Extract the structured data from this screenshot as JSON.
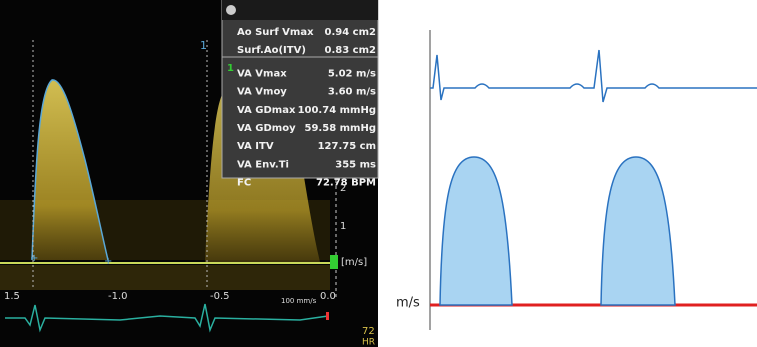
{
  "doppler": {
    "measurements": [
      {
        "label": "Ao Surf Vmax",
        "value": "0.94 cm2"
      },
      {
        "label": "Surf.Ao(ITV)",
        "value": "0.83 cm2"
      },
      {
        "label": "VA Vmax",
        "value": "5.02 m/s"
      },
      {
        "label": "VA Vmoy",
        "value": "3.60 m/s"
      },
      {
        "label": "VA GDmax",
        "value": "100.74 mmHg"
      },
      {
        "label": "VA GDmoy",
        "value": "59.58 mmHg"
      },
      {
        "label": "VA ITV",
        "value": "127.75 cm"
      },
      {
        "label": "VA Env.Ti",
        "value": "355 ms"
      },
      {
        "label": "FC",
        "value": "72.78 BPM"
      }
    ],
    "group_marker": "1",
    "cursor_marker": "1",
    "scale_ticks": [
      "2",
      "1"
    ],
    "scale_unit": "[m/s]",
    "time_ticks": [
      "1.5",
      "-1.0",
      "-0.5",
      "0.0"
    ],
    "sweep_speed": "100 mm/s",
    "heart_rate": "72",
    "heart_rate_unit": "HR"
  },
  "schematic": {
    "y_label": "m/s"
  }
}
